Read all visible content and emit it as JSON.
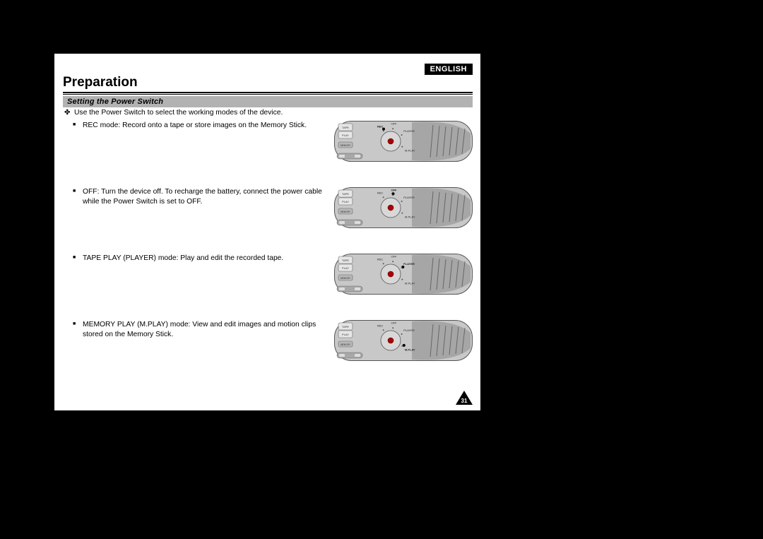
{
  "language_badge": "ENGLISH",
  "heading": "Preparation",
  "section_title": "Setting the Power Switch",
  "lead_text": "Use the Power Switch to select the working modes of the device.",
  "items": [
    {
      "text": "REC mode: Record onto a tape or store images on the Memory Stick.",
      "dial_pos": "REC"
    },
    {
      "text": "OFF: Turn the device off. To recharge the battery, connect the power cable while the Power Switch is set to OFF.",
      "dial_pos": "OFF"
    },
    {
      "text": "TAPE PLAY (PLAYER) mode: Play and edit the recorded tape.",
      "dial_pos": "PLAYER"
    },
    {
      "text": "MEMORY PLAY (M.PLAY) mode: View and edit images and motion clips stored on the Memory Stick.",
      "dial_pos": "MPLAY"
    }
  ],
  "dial_labels": {
    "rec": "REC",
    "off": "OFF",
    "player": "PLAYER",
    "mplay": "M.PLAY"
  },
  "button_labels": {
    "tape": "TAPE",
    "play": "PLAY",
    "memory": "MEMORY"
  },
  "page_number": "31",
  "colors": {
    "page_bg": "#ffffff",
    "outer_bg": "#000000",
    "section_bar": "#b2b2b2",
    "diagram_fill": "#c8c8c8",
    "diagram_dark": "#8a8a8a",
    "diagram_stroke": "#555555"
  }
}
